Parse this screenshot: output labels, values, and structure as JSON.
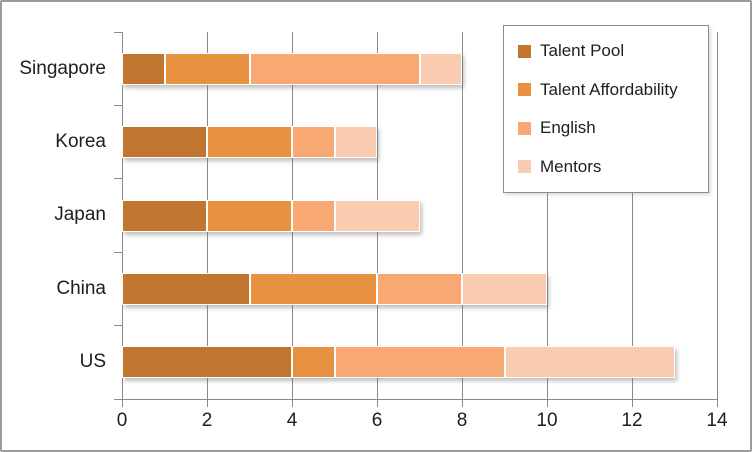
{
  "chart_data": {
    "type": "bar",
    "orientation": "horizontal",
    "stacked": true,
    "title": "",
    "xlabel": "",
    "ylabel": "",
    "xlim": [
      0,
      14
    ],
    "xticks": [
      "0",
      "2",
      "4",
      "6",
      "8",
      "10",
      "12",
      "14"
    ],
    "grid": "vertical",
    "legend_position": "top-right",
    "categories": [
      "Singapore",
      "Korea",
      "Japan",
      "China",
      "US"
    ],
    "series": [
      {
        "name": "Talent Pool",
        "color": "#c1762f",
        "values": [
          1,
          2,
          2,
          3,
          4
        ]
      },
      {
        "name": "Talent Affordability",
        "color": "#e89140",
        "values": [
          2,
          2,
          2,
          3,
          1
        ]
      },
      {
        "name": "English",
        "color": "#f7a873",
        "values": [
          4,
          1,
          1,
          2,
          4
        ]
      },
      {
        "name": "Mentors",
        "color": "#f9ccb2",
        "values": [
          1,
          1,
          2,
          2,
          4
        ]
      }
    ],
    "totals": [
      8,
      6,
      7,
      10,
      13
    ]
  },
  "colors": {
    "grid": "#8a8a8a",
    "frame_border": "#9b9b9b",
    "text": "#1e1e1e",
    "background": "#ffffff"
  }
}
